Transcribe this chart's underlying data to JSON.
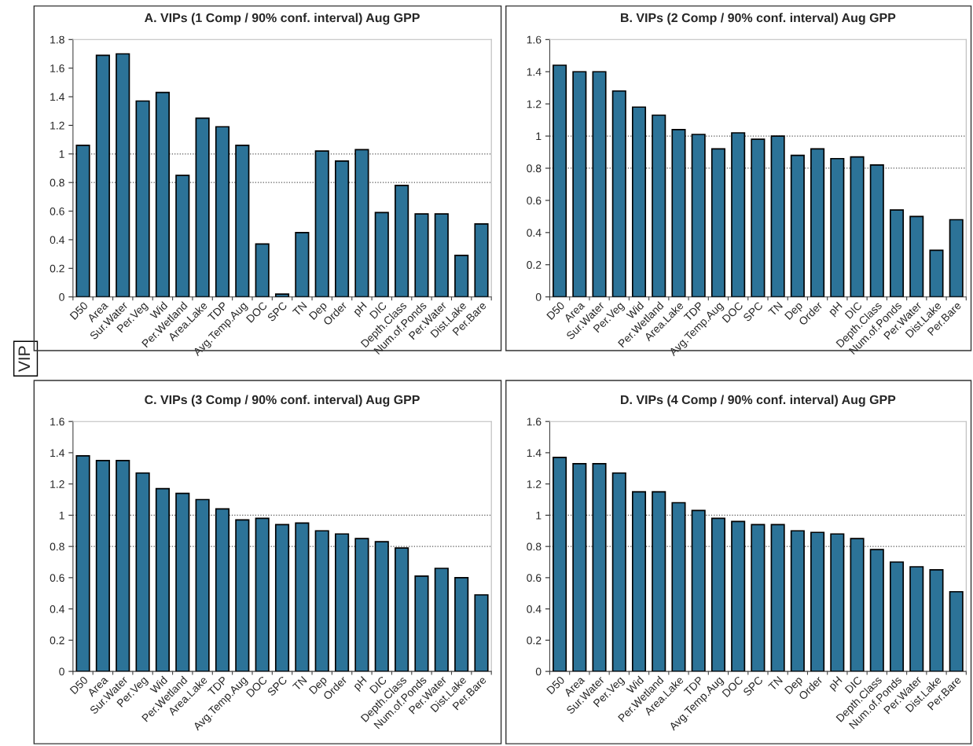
{
  "chart_data": [
    {
      "type": "bar",
      "title": "A. VIPs (1 Comp / 90% conf. interval) Aug GPP",
      "ylabel": "VIP",
      "categories": [
        "D50",
        "Area",
        "Sur.Water",
        "Per.Veg",
        "Wid",
        "Per.Wetland",
        "Area.Lake",
        "TDP",
        "Avg.Temp.Aug",
        "DOC",
        "SPC",
        "TN",
        "Dep",
        "Order",
        "pH",
        "DIC",
        "Depth.Class",
        "Num.of.Ponds",
        "Per.Water",
        "Dist.Lake",
        "Per.Bare"
      ],
      "values": [
        1.06,
        1.69,
        1.7,
        1.37,
        1.43,
        0.85,
        1.25,
        1.19,
        1.06,
        0.37,
        0.02,
        0.45,
        1.02,
        0.95,
        1.03,
        0.59,
        0.78,
        0.58,
        0.58,
        0.29,
        0.51
      ],
      "color": "#2c7398",
      "ylim": [
        0,
        1.8
      ],
      "yticks": [
        0,
        0.2,
        0.4,
        0.6,
        0.8,
        1,
        1.2,
        1.4,
        1.6,
        1.8
      ],
      "grid": false,
      "ref_lines": [
        {
          "axis": "y",
          "value": 1,
          "line_style": "dotted",
          "color": "#555555"
        },
        {
          "axis": "y",
          "value": 0.8,
          "line_style": "dotted",
          "color": "#555555"
        }
      ]
    },
    {
      "type": "bar",
      "title": "B. VIPs (2 Comp / 90% conf. interval) Aug GPP",
      "categories": [
        "D50",
        "Area",
        "Sur.Water",
        "Per.Veg",
        "Wid",
        "Per.Wetland",
        "Area.Lake",
        "TDP",
        "Avg.Temp.Aug",
        "DOC",
        "SPC",
        "TN",
        "Dep",
        "Order",
        "pH",
        "DIC",
        "Depth.Class",
        "Num.of.Ponds",
        "Per.Water",
        "Dist.Lake",
        "Per.Bare"
      ],
      "values": [
        1.44,
        1.4,
        1.4,
        1.28,
        1.18,
        1.13,
        1.04,
        1.01,
        0.92,
        1.02,
        0.98,
        1.0,
        0.88,
        0.92,
        0.86,
        0.87,
        0.82,
        0.54,
        0.5,
        0.29,
        0.48
      ],
      "color": "#2c7398",
      "ylim": [
        0,
        1.6
      ],
      "yticks": [
        0,
        0.2,
        0.4,
        0.6,
        0.8,
        1,
        1.2,
        1.4,
        1.6
      ],
      "grid": false,
      "ref_lines": [
        {
          "axis": "y",
          "value": 1,
          "line_style": "dotted",
          "color": "#555555"
        },
        {
          "axis": "y",
          "value": 0.8,
          "line_style": "dotted",
          "color": "#555555"
        }
      ]
    },
    {
      "type": "bar",
      "title": "C. VIPs (3 Comp / 90% conf. interval) Aug GPP",
      "categories": [
        "D50",
        "Area",
        "Sur.Water",
        "Per.Veg",
        "Wid",
        "Per.Wetland",
        "Area.Lake",
        "TDP",
        "Avg.Temp.Aug",
        "DOC",
        "SPC",
        "TN",
        "Dep",
        "Order",
        "pH",
        "DIC",
        "Depth.Class",
        "Num.of.Ponds",
        "Per.Water",
        "Dist.Lake",
        "Per.Bare"
      ],
      "values": [
        1.38,
        1.35,
        1.35,
        1.27,
        1.17,
        1.14,
        1.1,
        1.04,
        0.97,
        0.98,
        0.94,
        0.95,
        0.9,
        0.88,
        0.85,
        0.83,
        0.79,
        0.61,
        0.66,
        0.6,
        0.49
      ],
      "color": "#2c7398",
      "ylim": [
        0,
        1.6
      ],
      "yticks": [
        0,
        0.2,
        0.4,
        0.6,
        0.8,
        1,
        1.2,
        1.4,
        1.6
      ],
      "grid": false,
      "ref_lines": [
        {
          "axis": "y",
          "value": 1,
          "line_style": "dotted",
          "color": "#555555"
        },
        {
          "axis": "y",
          "value": 0.8,
          "line_style": "dotted",
          "color": "#555555"
        }
      ]
    },
    {
      "type": "bar",
      "title": "D. VIPs (4 Comp / 90% conf. interval) Aug GPP",
      "categories": [
        "D50",
        "Area",
        "Sur.Water",
        "Per.Veg",
        "Wid",
        "Per.Wetland",
        "Area.Lake",
        "TDP",
        "Avg.Temp.Aug",
        "DOC",
        "SPC",
        "TN",
        "Dep",
        "Order",
        "pH",
        "DIC",
        "Depth.Class",
        "Num.of.Ponds",
        "Per.Water",
        "Dist.Lake",
        "Per.Bare"
      ],
      "values": [
        1.37,
        1.33,
        1.33,
        1.27,
        1.15,
        1.15,
        1.08,
        1.03,
        0.98,
        0.96,
        0.94,
        0.94,
        0.9,
        0.89,
        0.88,
        0.85,
        0.78,
        0.7,
        0.67,
        0.65,
        0.51
      ],
      "color": "#2c7398",
      "ylim": [
        0,
        1.6
      ],
      "yticks": [
        0,
        0.2,
        0.4,
        0.6,
        0.8,
        1,
        1.2,
        1.4,
        1.6
      ],
      "grid": false,
      "ref_lines": [
        {
          "axis": "y",
          "value": 1,
          "line_style": "dotted",
          "color": "#555555"
        },
        {
          "axis": "y",
          "value": 0.8,
          "line_style": "dotted",
          "color": "#555555"
        }
      ]
    }
  ]
}
